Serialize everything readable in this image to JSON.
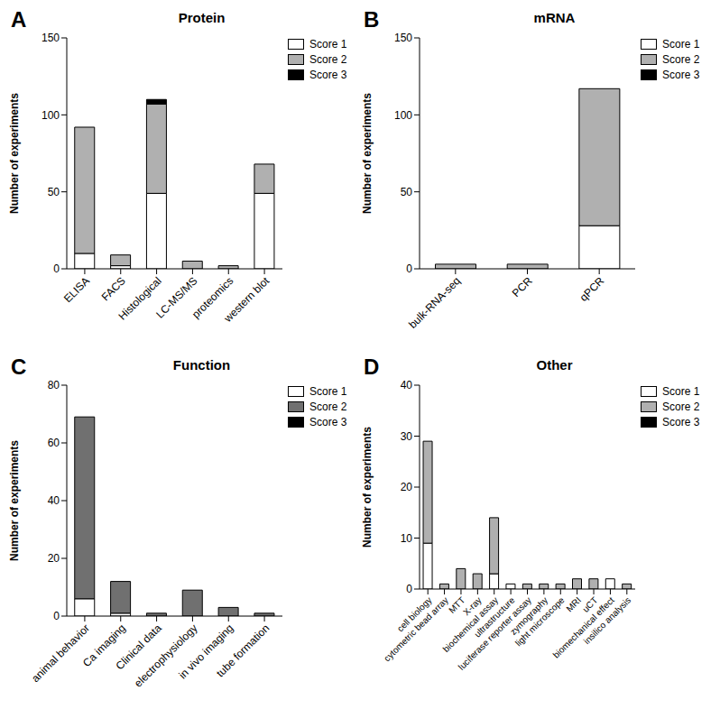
{
  "chart_data": [
    {
      "type": "bar",
      "panel_label": "A",
      "title": "Protein",
      "y_label": "Number of experiments",
      "stacked": true,
      "legend": "right",
      "categories": [
        "ELISA",
        "FACS",
        "Histological",
        "LC-MS/MS",
        "proteomics",
        "western blot"
      ],
      "series": [
        {
          "name": "Score 1",
          "color": "#ffffff",
          "values": [
            10,
            2,
            49,
            0,
            0,
            49
          ]
        },
        {
          "name": "Score 2",
          "color": "#b0b0b0",
          "values": [
            82,
            7,
            58,
            5,
            2,
            19
          ]
        },
        {
          "name": "Score 3",
          "color": "#000000",
          "values": [
            0,
            0,
            3,
            0,
            0,
            0
          ]
        }
      ],
      "ylim": [
        0,
        150
      ],
      "yticks": [
        0,
        50,
        100,
        150
      ]
    },
    {
      "type": "bar",
      "panel_label": "B",
      "title": "mRNA",
      "y_label": "Number of experiments",
      "stacked": true,
      "legend": "right",
      "categories": [
        "bulk-RNA-seq",
        "PCR",
        "qPCR"
      ],
      "series": [
        {
          "name": "Score 1",
          "color": "#ffffff",
          "values": [
            0,
            0,
            28
          ]
        },
        {
          "name": "Score 2",
          "color": "#b0b0b0",
          "values": [
            3,
            3,
            89
          ]
        },
        {
          "name": "Score 3",
          "color": "#000000",
          "values": [
            0,
            0,
            0
          ]
        }
      ],
      "ylim": [
        0,
        150
      ],
      "yticks": [
        0,
        50,
        100,
        150
      ]
    },
    {
      "type": "bar",
      "panel_label": "C",
      "title": "Function",
      "y_label": "Number of experiments",
      "stacked": true,
      "legend": "right",
      "categories": [
        "animal behavior",
        "Ca imaging",
        "Clinical data",
        "electrophysiology",
        "in vivo imaging",
        "tube formation"
      ],
      "series": [
        {
          "name": "Score 1",
          "color": "#ffffff",
          "values": [
            6,
            1,
            0,
            0,
            0,
            0
          ]
        },
        {
          "name": "Score 2",
          "color": "#707070",
          "values": [
            63,
            11,
            1,
            9,
            3,
            1
          ]
        },
        {
          "name": "Score 3",
          "color": "#000000",
          "values": [
            0,
            0,
            0,
            0,
            0,
            0
          ]
        }
      ],
      "ylim": [
        0,
        80
      ],
      "yticks": [
        0,
        20,
        40,
        60,
        80
      ]
    },
    {
      "type": "bar",
      "panel_label": "D",
      "title": "Other",
      "y_label": "Number of experiments",
      "stacked": true,
      "legend": "right",
      "categories": [
        "cell biology",
        "cytometric bead array",
        "MTT",
        "X-ray",
        "biochemical assay",
        "ultrastructure",
        "luciferase reporter assay",
        "zymography",
        "light microscope",
        "MRI",
        "uCT",
        "biomechanical effect",
        "insilico analysis"
      ],
      "series": [
        {
          "name": "Score 1",
          "color": "#ffffff",
          "values": [
            9,
            0,
            0,
            0,
            3,
            1,
            0,
            0,
            0,
            0,
            0,
            2,
            0
          ]
        },
        {
          "name": "Score 2",
          "color": "#b0b0b0",
          "values": [
            20,
            1,
            4,
            3,
            11,
            0,
            1,
            1,
            1,
            2,
            2,
            0,
            1
          ]
        },
        {
          "name": "Score 3",
          "color": "#000000",
          "values": [
            0,
            0,
            0,
            0,
            0,
            0,
            0,
            0,
            0,
            0,
            0,
            0,
            0
          ]
        }
      ],
      "ylim": [
        0,
        40
      ],
      "yticks": [
        0,
        10,
        20,
        30,
        40
      ]
    }
  ]
}
